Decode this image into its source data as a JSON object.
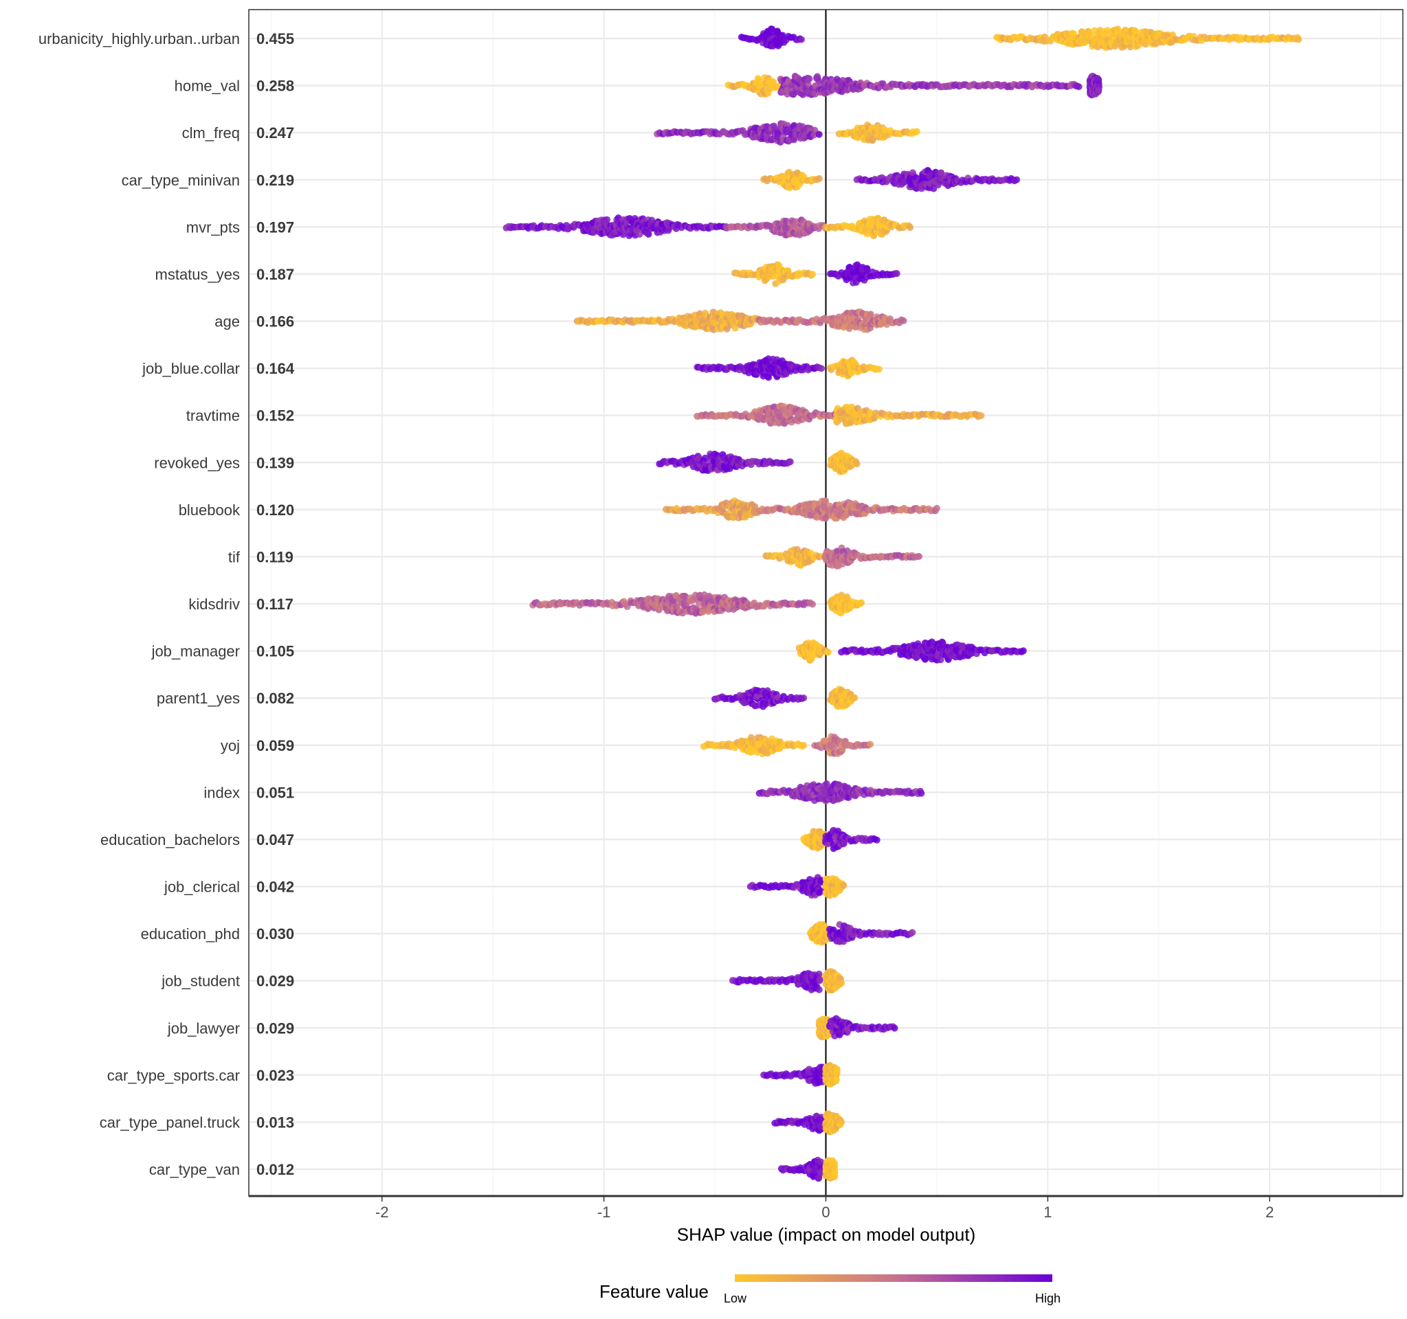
{
  "chart_data": {
    "type": "scatter",
    "subtype": "shap-beeswarm",
    "xlabel": "SHAP value (impact on model output)",
    "xlim": [
      -2.6,
      2.6
    ],
    "xticks": [
      -2,
      -1,
      0,
      1,
      2
    ],
    "grid": true,
    "legend": {
      "title": "Feature value",
      "low_label": "Low",
      "high_label": "High",
      "placement": "bottom",
      "colors": {
        "low": "#FFC72C",
        "mid": "#C8738E",
        "high": "#6A00D8"
      }
    },
    "features": [
      {
        "name": "urbanicity_highly.urban..urban",
        "mean_abs_shap": "0.455",
        "segments": [
          {
            "from": -0.38,
            "to": -0.11,
            "peak": -0.24,
            "fv": 1
          },
          {
            "from": 0.77,
            "to": 2.13,
            "peak": 1.3,
            "fv": 0.05
          }
        ]
      },
      {
        "name": "home_val",
        "mean_abs_shap": "0.258",
        "segments": [
          {
            "from": -0.44,
            "to": -0.2,
            "peak": -0.28,
            "fv": 0.05
          },
          {
            "from": -0.2,
            "to": 1.14,
            "peak": -0.1,
            "fv": 0.75
          },
          {
            "from": 1.19,
            "to": 1.23,
            "peak": 1.2,
            "fv": 0.85
          }
        ]
      },
      {
        "name": "clm_freq",
        "mean_abs_shap": "0.247",
        "segments": [
          {
            "from": -0.76,
            "to": -0.03,
            "peak": -0.2,
            "fv": 0.8
          },
          {
            "from": 0.06,
            "to": 0.41,
            "peak": 0.2,
            "fv": 0.05
          }
        ]
      },
      {
        "name": "car_type_minivan",
        "mean_abs_shap": "0.219",
        "segments": [
          {
            "from": -0.28,
            "to": -0.03,
            "peak": -0.15,
            "fv": 0.05
          },
          {
            "from": 0.14,
            "to": 0.86,
            "peak": 0.45,
            "fv": 0.9
          }
        ]
      },
      {
        "name": "mvr_pts",
        "mean_abs_shap": "0.197",
        "segments": [
          {
            "from": -1.44,
            "to": -0.45,
            "peak": -0.9,
            "fv": 0.9
          },
          {
            "from": -0.45,
            "to": 0.0,
            "peak": -0.15,
            "fv": 0.6
          },
          {
            "from": 0.0,
            "to": 0.38,
            "peak": 0.22,
            "fv": 0.05
          }
        ]
      },
      {
        "name": "mstatus_yes",
        "mean_abs_shap": "0.187",
        "segments": [
          {
            "from": -0.41,
            "to": -0.06,
            "peak": -0.23,
            "fv": 0.05
          },
          {
            "from": 0.02,
            "to": 0.32,
            "peak": 0.14,
            "fv": 1
          }
        ]
      },
      {
        "name": "age",
        "mean_abs_shap": "0.166",
        "segments": [
          {
            "from": -1.12,
            "to": -0.3,
            "peak": -0.5,
            "fv": 0.15
          },
          {
            "from": -0.3,
            "to": 0.35,
            "peak": 0.14,
            "fv": 0.45
          }
        ]
      },
      {
        "name": "job_blue.collar",
        "mean_abs_shap": "0.164",
        "segments": [
          {
            "from": -0.58,
            "to": -0.02,
            "peak": -0.25,
            "fv": 0.95
          },
          {
            "from": 0.02,
            "to": 0.24,
            "peak": 0.1,
            "fv": 0.05
          }
        ]
      },
      {
        "name": "travtime",
        "mean_abs_shap": "0.152",
        "segments": [
          {
            "from": -0.58,
            "to": 0.05,
            "peak": -0.2,
            "fv": 0.5
          },
          {
            "from": 0.05,
            "to": 0.7,
            "peak": 0.08,
            "fv": 0.12
          }
        ]
      },
      {
        "name": "revoked_yes",
        "mean_abs_shap": "0.139",
        "segments": [
          {
            "from": -0.75,
            "to": -0.16,
            "peak": -0.5,
            "fv": 0.9
          },
          {
            "from": 0.02,
            "to": 0.14,
            "peak": 0.07,
            "fv": 0.05
          }
        ]
      },
      {
        "name": "bluebook",
        "mean_abs_shap": "0.120",
        "segments": [
          {
            "from": -0.72,
            "to": -0.3,
            "peak": -0.4,
            "fv": 0.2
          },
          {
            "from": -0.3,
            "to": 0.5,
            "peak": 0.03,
            "fv": 0.45
          }
        ]
      },
      {
        "name": "tif",
        "mean_abs_shap": "0.119",
        "segments": [
          {
            "from": -0.27,
            "to": 0.0,
            "peak": -0.12,
            "fv": 0.1
          },
          {
            "from": 0.0,
            "to": 0.42,
            "peak": 0.05,
            "fv": 0.55
          }
        ]
      },
      {
        "name": "kidsdriv",
        "mean_abs_shap": "0.117",
        "segments": [
          {
            "from": -1.32,
            "to": -0.06,
            "peak": -0.6,
            "fv": 0.55
          },
          {
            "from": 0.02,
            "to": 0.16,
            "peak": 0.07,
            "fv": 0.05
          }
        ]
      },
      {
        "name": "job_manager",
        "mean_abs_shap": "0.105",
        "segments": [
          {
            "from": -0.12,
            "to": 0.01,
            "peak": -0.07,
            "fv": 0.05
          },
          {
            "from": 0.07,
            "to": 0.89,
            "peak": 0.5,
            "fv": 0.95
          }
        ]
      },
      {
        "name": "parent1_yes",
        "mean_abs_shap": "0.082",
        "segments": [
          {
            "from": -0.5,
            "to": -0.1,
            "peak": -0.3,
            "fv": 0.9
          },
          {
            "from": 0.02,
            "to": 0.13,
            "peak": 0.07,
            "fv": 0.05
          }
        ]
      },
      {
        "name": "yoj",
        "mean_abs_shap": "0.059",
        "segments": [
          {
            "from": -0.55,
            "to": -0.1,
            "peak": -0.3,
            "fv": 0.05
          },
          {
            "from": -0.05,
            "to": 0.2,
            "peak": 0.04,
            "fv": 0.45
          }
        ]
      },
      {
        "name": "index",
        "mean_abs_shap": "0.051",
        "segments": [
          {
            "from": -0.3,
            "to": 0.43,
            "peak": 0.0,
            "fv": 0.8
          }
        ]
      },
      {
        "name": "education_bachelors",
        "mean_abs_shap": "0.047",
        "segments": [
          {
            "from": -0.1,
            "to": 0.0,
            "peak": -0.04,
            "fv": 0.05
          },
          {
            "from": 0.0,
            "to": 0.23,
            "peak": 0.04,
            "fv": 0.9
          }
        ]
      },
      {
        "name": "job_clerical",
        "mean_abs_shap": "0.042",
        "segments": [
          {
            "from": -0.34,
            "to": -0.02,
            "peak": -0.05,
            "fv": 0.95
          },
          {
            "from": 0.0,
            "to": 0.08,
            "peak": 0.02,
            "fv": 0.05
          }
        ]
      },
      {
        "name": "education_phd",
        "mean_abs_shap": "0.030",
        "segments": [
          {
            "from": -0.07,
            "to": 0.02,
            "peak": -0.02,
            "fv": 0.05
          },
          {
            "from": 0.02,
            "to": 0.39,
            "peak": 0.05,
            "fv": 0.9
          }
        ]
      },
      {
        "name": "job_student",
        "mean_abs_shap": "0.029",
        "segments": [
          {
            "from": -0.42,
            "to": -0.03,
            "peak": -0.05,
            "fv": 0.95
          },
          {
            "from": 0.0,
            "to": 0.07,
            "peak": 0.02,
            "fv": 0.05
          }
        ]
      },
      {
        "name": "job_lawyer",
        "mean_abs_shap": "0.029",
        "segments": [
          {
            "from": -0.03,
            "to": 0.02,
            "peak": -0.01,
            "fv": 0.05
          },
          {
            "from": 0.02,
            "to": 0.31,
            "peak": 0.05,
            "fv": 0.9
          }
        ]
      },
      {
        "name": "car_type_sports.car",
        "mean_abs_shap": "0.023",
        "segments": [
          {
            "from": -0.28,
            "to": -0.02,
            "peak": -0.04,
            "fv": 0.95
          },
          {
            "from": 0.0,
            "to": 0.05,
            "peak": 0.02,
            "fv": 0.05
          }
        ]
      },
      {
        "name": "car_type_panel.truck",
        "mean_abs_shap": "0.013",
        "segments": [
          {
            "from": -0.23,
            "to": -0.02,
            "peak": -0.04,
            "fv": 0.95
          },
          {
            "from": 0.0,
            "to": 0.07,
            "peak": 0.02,
            "fv": 0.05
          }
        ]
      },
      {
        "name": "car_type_van",
        "mean_abs_shap": "0.012",
        "segments": [
          {
            "from": -0.2,
            "to": -0.02,
            "peak": -0.04,
            "fv": 0.95
          },
          {
            "from": 0.0,
            "to": 0.04,
            "peak": 0.02,
            "fv": 0.05
          }
        ]
      }
    ]
  }
}
